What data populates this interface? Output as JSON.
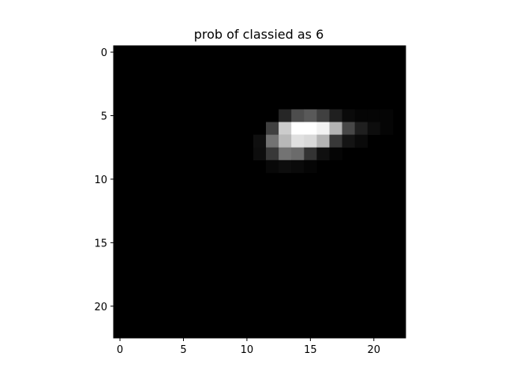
{
  "chart_data": {
    "type": "heatmap",
    "title": "prob of classied as 6",
    "xlabel": "",
    "ylabel": "",
    "rows": 23,
    "cols": 23,
    "colormap": "gray",
    "xlim": [
      -0.5,
      22.5
    ],
    "ylim": [
      22.5,
      -0.5
    ],
    "x_ticks": [
      0,
      5,
      10,
      15,
      20
    ],
    "y_ticks": [
      0,
      5,
      10,
      15,
      20
    ],
    "grid": false,
    "cells": [
      {
        "row": 5,
        "col": 13,
        "value": 0.15
      },
      {
        "row": 5,
        "col": 14,
        "value": 0.3
      },
      {
        "row": 5,
        "col": 15,
        "value": 0.35
      },
      {
        "row": 5,
        "col": 16,
        "value": 0.25
      },
      {
        "row": 5,
        "col": 17,
        "value": 0.12
      },
      {
        "row": 5,
        "col": 18,
        "value": 0.04
      },
      {
        "row": 5,
        "col": 19,
        "value": 0.02
      },
      {
        "row": 5,
        "col": 20,
        "value": 0.02
      },
      {
        "row": 5,
        "col": 21,
        "value": 0.02
      },
      {
        "row": 6,
        "col": 12,
        "value": 0.25
      },
      {
        "row": 6,
        "col": 13,
        "value": 0.8
      },
      {
        "row": 6,
        "col": 14,
        "value": 1.0
      },
      {
        "row": 6,
        "col": 15,
        "value": 1.0
      },
      {
        "row": 6,
        "col": 16,
        "value": 0.95
      },
      {
        "row": 6,
        "col": 17,
        "value": 0.7
      },
      {
        "row": 6,
        "col": 18,
        "value": 0.28
      },
      {
        "row": 6,
        "col": 19,
        "value": 0.12
      },
      {
        "row": 6,
        "col": 20,
        "value": 0.05
      },
      {
        "row": 6,
        "col": 21,
        "value": 0.02
      },
      {
        "row": 7,
        "col": 11,
        "value": 0.06
      },
      {
        "row": 7,
        "col": 12,
        "value": 0.45
      },
      {
        "row": 7,
        "col": 13,
        "value": 0.72
      },
      {
        "row": 7,
        "col": 14,
        "value": 0.88
      },
      {
        "row": 7,
        "col": 15,
        "value": 0.85
      },
      {
        "row": 7,
        "col": 16,
        "value": 0.7
      },
      {
        "row": 7,
        "col": 17,
        "value": 0.22
      },
      {
        "row": 7,
        "col": 18,
        "value": 0.08
      },
      {
        "row": 7,
        "col": 19,
        "value": 0.04
      },
      {
        "row": 8,
        "col": 11,
        "value": 0.05
      },
      {
        "row": 8,
        "col": 12,
        "value": 0.22
      },
      {
        "row": 8,
        "col": 13,
        "value": 0.45
      },
      {
        "row": 8,
        "col": 14,
        "value": 0.42
      },
      {
        "row": 8,
        "col": 15,
        "value": 0.2
      },
      {
        "row": 8,
        "col": 16,
        "value": 0.06
      },
      {
        "row": 8,
        "col": 17,
        "value": 0.02
      },
      {
        "row": 9,
        "col": 12,
        "value": 0.03
      },
      {
        "row": 9,
        "col": 13,
        "value": 0.05
      },
      {
        "row": 9,
        "col": 14,
        "value": 0.04
      },
      {
        "row": 9,
        "col": 15,
        "value": 0.02
      }
    ]
  }
}
